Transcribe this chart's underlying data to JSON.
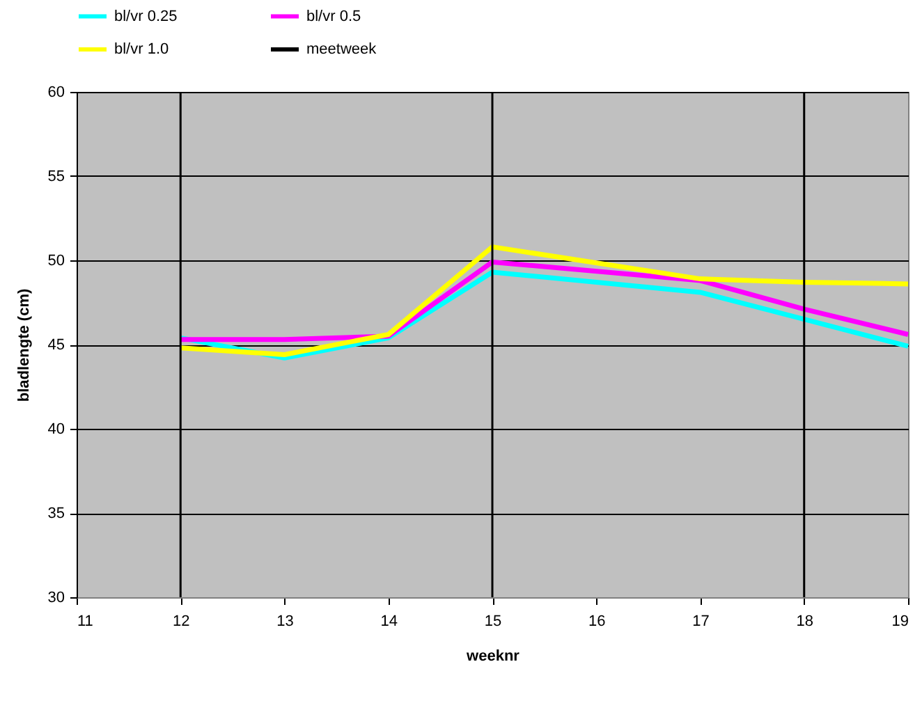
{
  "chart_data": {
    "type": "line",
    "xlabel": "weeknr",
    "ylabel": "bladlengte (cm)",
    "series": [
      {
        "name": "bl/vr 0.25",
        "color": "#00ffff",
        "x": [
          12,
          13,
          14,
          15,
          17,
          18,
          19
        ],
        "values": [
          45.4,
          44.2,
          45.4,
          49.3,
          48.1,
          46.5,
          44.9
        ]
      },
      {
        "name": "bl/vr 0.5",
        "color": "#ff00ff",
        "x": [
          12,
          13,
          14,
          15,
          17,
          18,
          19
        ],
        "values": [
          45.3,
          45.3,
          45.5,
          49.9,
          48.8,
          47.1,
          45.6
        ]
      },
      {
        "name": "bl/vr 1.0",
        "color": "#ffff00",
        "x": [
          12,
          13,
          14,
          15,
          17,
          18,
          19
        ],
        "values": [
          44.8,
          44.4,
          45.6,
          50.8,
          48.9,
          48.7,
          48.6
        ]
      }
    ],
    "ref_lines": [
      {
        "axis": "x",
        "value": 12,
        "label": "meetweek",
        "color": "#000000"
      },
      {
        "axis": "x",
        "value": 15,
        "label": null,
        "color": "#000000"
      },
      {
        "axis": "x",
        "value": 18,
        "label": null,
        "color": "#000000"
      }
    ],
    "xlim": [
      11,
      19
    ],
    "xticks": [
      11,
      12,
      13,
      14,
      15,
      16,
      17,
      18,
      19
    ],
    "ylim": [
      30,
      60
    ],
    "yticks": [
      30,
      35,
      40,
      45,
      50,
      55,
      60
    ],
    "grid": "y",
    "legend": "top",
    "marker": "none",
    "line_style": "solid"
  }
}
